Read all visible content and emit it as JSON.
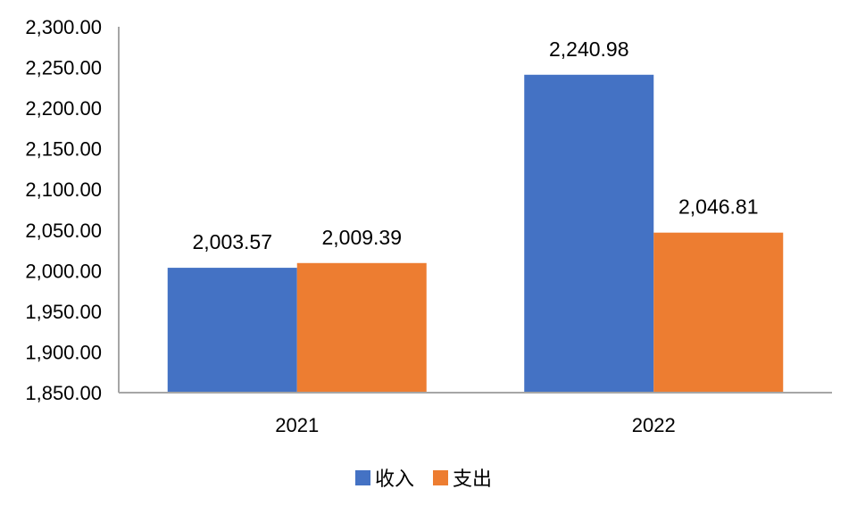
{
  "chart_data": {
    "type": "bar",
    "categories": [
      "2021",
      "2022"
    ],
    "series": [
      {
        "name": "收入",
        "values": [
          2003.57,
          2240.98
        ],
        "color": "#4472C4"
      },
      {
        "name": "支出",
        "values": [
          2009.39,
          2046.81
        ],
        "color": "#ED7D31"
      }
    ],
    "data_labels": [
      [
        "2,003.57",
        "2,240.98"
      ],
      [
        "2,009.39",
        "2,046.81"
      ]
    ],
    "y_ticks": [
      "1,850.00",
      "1,900.00",
      "1,950.00",
      "2,000.00",
      "2,050.00",
      "2,100.00",
      "2,150.00",
      "2,200.00",
      "2,250.00",
      "2,300.00"
    ],
    "ylim": [
      1850,
      2300
    ],
    "y_step": 50,
    "title": "",
    "xlabel": "",
    "ylabel": "",
    "grid": false,
    "legend_position": "bottom-center",
    "axis_color": "#A6A6A6"
  }
}
